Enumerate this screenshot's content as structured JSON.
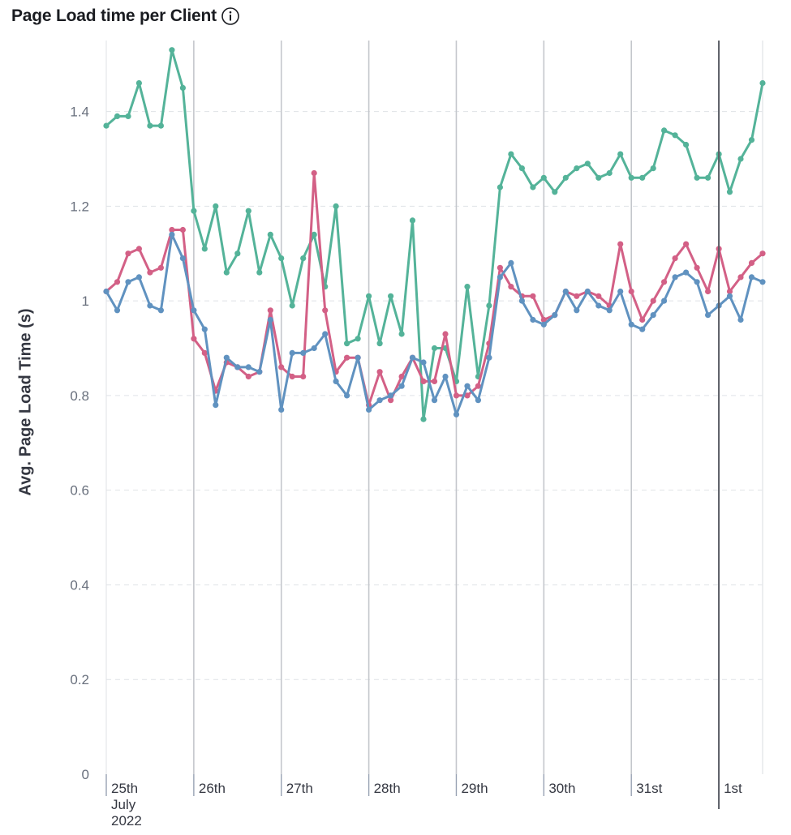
{
  "header": {
    "title": "Page Load time per Client"
  },
  "chart_data": {
    "type": "line",
    "title": "Page Load time per Client",
    "xlabel": "",
    "ylabel": "Avg. Page Load Time (s)",
    "ylim": [
      0,
      1.55
    ],
    "xlim": [
      "2022-07-25T00:00",
      "2022-08-01T12:00"
    ],
    "y_ticks": [
      "0",
      "0.2",
      "0.4",
      "0.6",
      "0.8",
      "1",
      "1.2",
      "1.4"
    ],
    "x_ticks": [
      {
        "label": "25th",
        "sublabel": "July",
        "sublabel2": "2022",
        "date": "2022-07-25"
      },
      {
        "label": "26th",
        "date": "2022-07-26"
      },
      {
        "label": "27th",
        "date": "2022-07-27"
      },
      {
        "label": "28th",
        "date": "2022-07-28"
      },
      {
        "label": "29th",
        "date": "2022-07-29"
      },
      {
        "label": "30th",
        "date": "2022-07-30"
      },
      {
        "label": "31st",
        "date": "2022-07-31"
      },
      {
        "label": "1st",
        "date": "2022-08-01"
      }
    ],
    "current_time_marker": "2022-08-01T00:00",
    "grid": true,
    "x_start": "2022-07-25T00:00",
    "x_step_hours": 3,
    "series": [
      {
        "color": "#54b399",
        "values": [
          1.37,
          1.39,
          1.39,
          1.46,
          1.37,
          1.37,
          1.53,
          1.45,
          1.19,
          1.11,
          1.2,
          1.06,
          1.1,
          1.19,
          1.06,
          1.14,
          1.09,
          0.99,
          1.09,
          1.14,
          1.03,
          1.2,
          0.91,
          0.92,
          1.01,
          0.91,
          1.01,
          0.93,
          1.17,
          0.75,
          0.9,
          0.9,
          0.83,
          1.03,
          0.84,
          0.99,
          1.24,
          1.31,
          1.28,
          1.24,
          1.26,
          1.23,
          1.26,
          1.28,
          1.29,
          1.26,
          1.27,
          1.31,
          1.26,
          1.26,
          1.28,
          1.36,
          1.35,
          1.33,
          1.26,
          1.26,
          1.31,
          1.23,
          1.3,
          1.34,
          1.46
        ]
      },
      {
        "color": "#d36086",
        "values": [
          1.02,
          1.04,
          1.1,
          1.11,
          1.06,
          1.07,
          1.15,
          1.15,
          0.92,
          0.89,
          0.81,
          0.87,
          0.86,
          0.84,
          0.85,
          0.98,
          0.86,
          0.84,
          0.84,
          1.27,
          0.98,
          0.85,
          0.88,
          0.88,
          0.78,
          0.85,
          0.79,
          0.84,
          0.88,
          0.83,
          0.83,
          0.93,
          0.8,
          0.8,
          0.82,
          0.91,
          1.07,
          1.03,
          1.01,
          1.01,
          0.96,
          0.97,
          1.02,
          1.01,
          1.02,
          1.01,
          0.99,
          1.12,
          1.02,
          0.96,
          1.0,
          1.04,
          1.09,
          1.12,
          1.07,
          1.02,
          1.11,
          1.02,
          1.05,
          1.08,
          1.1
        ]
      },
      {
        "color": "#6092c0",
        "values": [
          1.02,
          0.98,
          1.04,
          1.05,
          0.99,
          0.98,
          1.14,
          1.09,
          0.98,
          0.94,
          0.78,
          0.88,
          0.86,
          0.86,
          0.85,
          0.96,
          0.77,
          0.89,
          0.89,
          0.9,
          0.93,
          0.83,
          0.8,
          0.88,
          0.77,
          0.79,
          0.8,
          0.82,
          0.88,
          0.87,
          0.79,
          0.84,
          0.76,
          0.82,
          0.79,
          0.88,
          1.05,
          1.08,
          1.0,
          0.96,
          0.95,
          0.97,
          1.02,
          0.98,
          1.02,
          0.99,
          0.98,
          1.02,
          0.95,
          0.94,
          0.97,
          1.0,
          1.05,
          1.06,
          1.04,
          0.97,
          0.99,
          1.01,
          0.96,
          1.05,
          1.04
        ]
      }
    ]
  }
}
